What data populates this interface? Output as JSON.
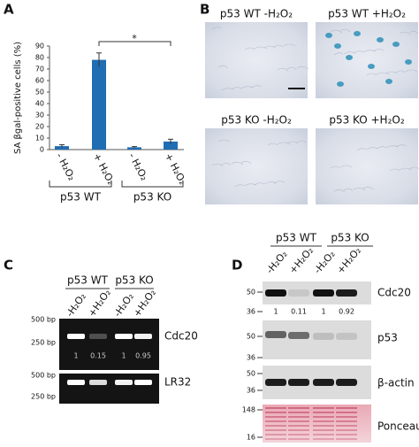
{
  "chart_data": {
    "type": "bar",
    "panel_label": "A",
    "y_label": "SA βgal-positive cells (%)",
    "categories": [
      "- H₂O₂",
      "+ H₂O₂",
      "- H₂O₂",
      "+ H₂O₂"
    ],
    "values": [
      3,
      78,
      2,
      7
    ],
    "errors": [
      1.2,
      6,
      0.6,
      2
    ],
    "color": "#1f6db3",
    "ylim": [
      0,
      90
    ],
    "yticks": [
      0,
      10,
      20,
      30,
      40,
      50,
      60,
      70,
      80,
      90
    ],
    "groups": [
      "p53 WT",
      "p53 KO"
    ],
    "significance": "*"
  },
  "panel_b": {
    "label": "B",
    "images": [
      "p53 WT -H₂O₂",
      "p53 WT +H₂O₂",
      "p53 KO -H₂O₂",
      "p53 KO +H₂O₂"
    ]
  },
  "panel_c": {
    "label": "C",
    "groups": [
      "p53 WT",
      "p53 KO"
    ],
    "lanes": [
      "-H₂O₂",
      "+H₂O₂",
      "-H₂O₂",
      "+H₂O₂"
    ],
    "gels": [
      {
        "name": "Cdc20",
        "markers": [
          "500 bp",
          "250 bp"
        ],
        "quantification": [
          1,
          0.15,
          1,
          0.95
        ]
      },
      {
        "name": "LR32",
        "markers": [
          "500 bp",
          "250 bp"
        ]
      }
    ]
  },
  "panel_d": {
    "label": "D",
    "groups": [
      "p53 WT",
      "p53 KO"
    ],
    "lanes": [
      "-H₂O₂",
      "+H₂O₂",
      "-H₂O₂",
      "+H₂O₂"
    ],
    "blots": [
      {
        "name": "Cdc20",
        "markers": [
          50,
          36
        ],
        "quantification": [
          1,
          0.11,
          1,
          0.92
        ]
      },
      {
        "name": "p53",
        "markers": [
          50,
          36
        ]
      },
      {
        "name": "β-actin",
        "markers": [
          50,
          36
        ]
      },
      {
        "name": "Ponceau S",
        "markers": [
          148,
          16
        ]
      }
    ]
  }
}
